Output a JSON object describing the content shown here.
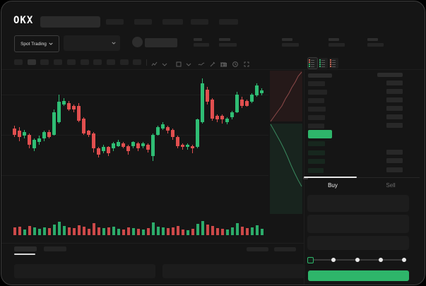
{
  "logo_text": "OKX",
  "colors": {
    "green": "#2eb56a",
    "red": "#e0524e",
    "candle_green": "#2fbd74",
    "candle_red": "#e14f4f",
    "bg": "#151515",
    "placeholder": "#262626",
    "placeholder_light": "#2e2e2e",
    "bid_tint": "#17271e",
    "text": "#e8e8e8",
    "muted": "#6f6f6f",
    "depth_red_line": "#a05252",
    "depth_green_line": "#3f9a68"
  },
  "header": {
    "search": {
      "value": "",
      "placeholder": ""
    },
    "nav_item_widths": [
      25,
      25,
      29,
      25,
      27
    ]
  },
  "subheader": {
    "market_selector": {
      "label": "Spot Trading"
    },
    "pair_dropdown": {
      "value": ""
    },
    "stat_placeholders": [
      {
        "top_w": 12,
        "bottom_w": 22
      },
      {
        "top_w": 16,
        "bottom_w": 25
      },
      {
        "top_w": 15,
        "bottom_w": 24
      },
      {
        "top_w": 15,
        "bottom_w": 23
      },
      {
        "top_w": 15,
        "bottom_w": 23
      }
    ]
  },
  "chart_toolbar": {
    "timeframe_count": 10,
    "active_timeframe_index": 1,
    "icons": [
      "indicator-dropdown-icon",
      "chevron-down-icon",
      "layout-dropdown-icon",
      "chevron-down-icon",
      "line-tool-icon",
      "draw-tool-icon",
      "camera-icon",
      "history-clock-icon",
      "fullscreen-icon"
    ]
  },
  "orderbook": {
    "view_icons": [
      "book-combined-icon",
      "book-bids-icon",
      "book-asks-icon"
    ],
    "header": {
      "left_w": 34,
      "right_w": 36
    },
    "asks": [
      {
        "price_w": 24,
        "amount_w": 23
      },
      {
        "price_w": 27,
        "amount_w": 23
      },
      {
        "price_w": 23,
        "amount_w": 23
      },
      {
        "price_w": 25,
        "amount_w": 23
      },
      {
        "price_w": 24,
        "amount_w": 23
      },
      {
        "price_w": 23,
        "amount_w": 23
      }
    ],
    "last_price_highlight": {
      "color": "#2eb56a",
      "w": 34,
      "h": 12
    },
    "bids": [
      {
        "price_w": 24,
        "amount_w": 0
      },
      {
        "price_w": 24,
        "amount_w": 23
      },
      {
        "price_w": 24,
        "amount_w": 23
      },
      {
        "price_w": 22,
        "amount_w": 23
      }
    ]
  },
  "trade_panel": {
    "tabs": [
      {
        "label": "Buy",
        "active": true
      },
      {
        "label": "Sell",
        "active": false
      }
    ],
    "fields": [
      {
        "value": ""
      },
      {
        "value": ""
      },
      {
        "value": ""
      }
    ],
    "slider": {
      "stops": 5,
      "active_stop": 0,
      "percent": 0
    },
    "submit_button": {
      "label": "",
      "color": "#2eb56a"
    }
  },
  "bottom_bar": {
    "left_tabs": [
      {
        "active": true
      },
      {
        "active": false
      }
    ],
    "right_tabs": [
      {
        "active": false
      },
      {
        "active": false
      }
    ],
    "panels": 2
  },
  "chart_data": {
    "type": "candlestick",
    "title": "",
    "xlabel": "",
    "ylabel": "",
    "grid": true,
    "price_scale": [
      0,
      100
    ],
    "note": "values are relative price units read from pixel positions; [open, high, low, close, volume]",
    "candles": [
      [
        58,
        60,
        51,
        53,
        45
      ],
      [
        56,
        59,
        48,
        51,
        55
      ],
      [
        52,
        57,
        50,
        55,
        30
      ],
      [
        53,
        54,
        42,
        45,
        60
      ],
      [
        42,
        50,
        40,
        49,
        50
      ],
      [
        47,
        52,
        45,
        50,
        35
      ],
      [
        50,
        56,
        48,
        55,
        45
      ],
      [
        55,
        57,
        50,
        51,
        40
      ],
      [
        53,
        73,
        52,
        71,
        70
      ],
      [
        63,
        85,
        62,
        79,
        95
      ],
      [
        77,
        82,
        76,
        80,
        60
      ],
      [
        78,
        80,
        72,
        73,
        50
      ],
      [
        76,
        77,
        71,
        73,
        40
      ],
      [
        76,
        78,
        63,
        64,
        65
      ],
      [
        66,
        67,
        53,
        54,
        55
      ],
      [
        56,
        57,
        51,
        53,
        35
      ],
      [
        54,
        55,
        39,
        42,
        80
      ],
      [
        42,
        43,
        35,
        37,
        50
      ],
      [
        40,
        45,
        38,
        43,
        40
      ],
      [
        43,
        44,
        36,
        38,
        45
      ],
      [
        42,
        47,
        40,
        46,
        55
      ],
      [
        44,
        49,
        43,
        47,
        35
      ],
      [
        46,
        47,
        42,
        43,
        30
      ],
      [
        44,
        45,
        37,
        40,
        50
      ],
      [
        44,
        48,
        42,
        47,
        40
      ],
      [
        46,
        47,
        40,
        42,
        35
      ],
      [
        44,
        47,
        42,
        46,
        30
      ],
      [
        45,
        46,
        39,
        41,
        40
      ],
      [
        36,
        54,
        32,
        53,
        90
      ],
      [
        53,
        60,
        52,
        59,
        55
      ],
      [
        58,
        63,
        57,
        61,
        45
      ],
      [
        59,
        60,
        54,
        56,
        40
      ],
      [
        57,
        58,
        49,
        51,
        50
      ],
      [
        51,
        52,
        42,
        44,
        60
      ],
      [
        45,
        46,
        41,
        43,
        30
      ],
      [
        43,
        46,
        41,
        45,
        25
      ],
      [
        44,
        45,
        38,
        42,
        35
      ],
      [
        43,
        66,
        42,
        65,
        75
      ],
      [
        63,
        98,
        62,
        94,
        100
      ],
      [
        89,
        91,
        77,
        79,
        70
      ],
      [
        81,
        82,
        64,
        66,
        60
      ],
      [
        68,
        69,
        63,
        65,
        40
      ],
      [
        68,
        69,
        62,
        65,
        35
      ],
      [
        63,
        67,
        61,
        66,
        30
      ],
      [
        67,
        72,
        65,
        71,
        45
      ],
      [
        71,
        87,
        70,
        85,
        80
      ],
      [
        81,
        83,
        74,
        76,
        55
      ],
      [
        80,
        81,
        75,
        76,
        40
      ],
      [
        79,
        86,
        78,
        85,
        50
      ],
      [
        84,
        94,
        83,
        92,
        65
      ],
      [
        86,
        90,
        84,
        88,
        35
      ]
    ],
    "depth": {
      "type": "area-vertical",
      "asks_side": "top",
      "bids_side": "bottom"
    }
  }
}
